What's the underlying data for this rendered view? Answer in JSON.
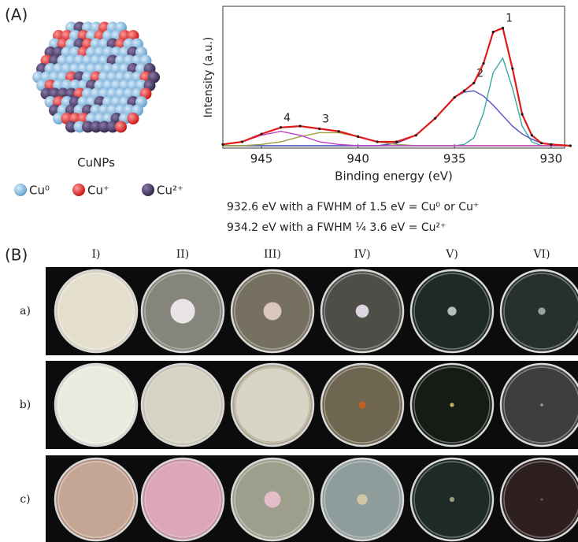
{
  "panel_a": {
    "label": "(A)",
    "particle_label": "CuNPs",
    "legend": [
      "Cu⁰",
      "Cu⁺",
      "Cu²⁺"
    ],
    "notes": [
      "932.6 eV with a FWHM of 1.5 eV  = Cu⁰ or Cu⁺",
      "934.2 eV with a FWHM ¼ 3.6 eV = Cu²⁺"
    ]
  },
  "chart_data": {
    "type": "line",
    "xlabel": "Binding energy (eV)",
    "ylabel": "Intensity (a.u.)",
    "x": [
      947,
      946,
      945,
      944,
      943,
      942,
      941,
      940,
      939,
      938,
      937,
      936,
      935,
      934.5,
      934,
      933.5,
      933,
      932.5,
      932,
      931.5,
      931,
      930.5,
      930,
      929
    ],
    "series": [
      {
        "name": "1",
        "color": "#3aaaa2",
        "values": [
          0,
          0,
          0,
          0,
          0,
          0,
          0,
          0,
          0,
          0,
          0,
          0,
          0,
          0.01,
          0.06,
          0.25,
          0.56,
          0.67,
          0.44,
          0.15,
          0.03,
          0,
          0,
          0
        ]
      },
      {
        "name": "2",
        "color": "#5a4fc0",
        "values": [
          0,
          0,
          0,
          0,
          0,
          0,
          0,
          0,
          0,
          0.02,
          0.08,
          0.21,
          0.37,
          0.41,
          0.42,
          0.38,
          0.31,
          0.23,
          0.15,
          0.09,
          0.05,
          0.02,
          0.01,
          0
        ]
      },
      {
        "name": "3",
        "color": "#a0a040",
        "values": [
          0,
          0,
          0.01,
          0.03,
          0.07,
          0.1,
          0.1,
          0.07,
          0.03,
          0.01,
          0,
          0,
          0,
          0,
          0,
          0,
          0,
          0,
          0,
          0,
          0,
          0,
          0,
          0
        ]
      },
      {
        "name": "4",
        "color": "#c040c0",
        "values": [
          0.01,
          0.03,
          0.08,
          0.11,
          0.08,
          0.03,
          0.01,
          0,
          0,
          0,
          0,
          0,
          0,
          0,
          0,
          0,
          0,
          0,
          0,
          0,
          0,
          0,
          0,
          0
        ]
      },
      {
        "color": "#e01818",
        "values": [
          0.01,
          0.03,
          0.09,
          0.14,
          0.15,
          0.13,
          0.11,
          0.07,
          0.03,
          0.03,
          0.08,
          0.21,
          0.37,
          0.42,
          0.48,
          0.63,
          0.87,
          0.9,
          0.59,
          0.24,
          0.08,
          0.02,
          0.01,
          0
        ]
      }
    ],
    "xlim": [
      947,
      929.3
    ],
    "ylim": [
      0,
      1
    ],
    "xticks": [
      945,
      940,
      935,
      930
    ]
  },
  "panel_b": {
    "label": "(B)",
    "columns": [
      "I)",
      "II)",
      "III)",
      "IV)",
      "V)",
      "VI)"
    ],
    "rows": [
      "a)",
      "b)",
      "c)"
    ]
  }
}
